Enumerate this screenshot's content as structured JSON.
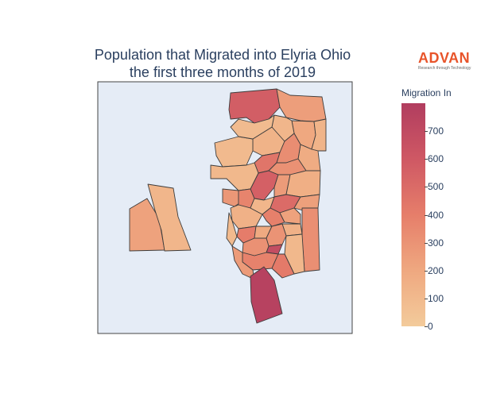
{
  "title": {
    "line1": "Population that Migrated into Elyria Ohio",
    "line2": "the first three months of 2019"
  },
  "logo": {
    "name": "ADVAN",
    "tagline": "Research through Technology"
  },
  "colorbar": {
    "title": "Migration In",
    "min": 0,
    "max": 800,
    "ticks": [
      "0",
      "100",
      "200",
      "300",
      "400",
      "500",
      "600",
      "700"
    ],
    "scale": [
      "#f3cb9b",
      "#efa880",
      "#e67e6a",
      "#cf5864",
      "#b13d5f"
    ]
  },
  "colors": {
    "plot_background": "#e5ecf6",
    "region_border": "#3d3d3d"
  },
  "chart_data": {
    "type": "choropleth",
    "value_label": "Migration In",
    "value_range": [
      0,
      800
    ],
    "regions": [
      {
        "id": "r01",
        "value": 570
      },
      {
        "id": "r02",
        "value": 250
      },
      {
        "id": "r03",
        "value": 200
      },
      {
        "id": "r04",
        "value": 130
      },
      {
        "id": "r05",
        "value": 120
      },
      {
        "id": "r06",
        "value": 140
      },
      {
        "id": "r07",
        "value": 100
      },
      {
        "id": "r08",
        "value": 90
      },
      {
        "id": "r09",
        "value": 180
      },
      {
        "id": "r10",
        "value": 330
      },
      {
        "id": "r11",
        "value": 450
      },
      {
        "id": "r12",
        "value": 560
      },
      {
        "id": "r13",
        "value": 310
      },
      {
        "id": "r14",
        "value": 260
      },
      {
        "id": "r15",
        "value": 160
      },
      {
        "id": "r16",
        "value": 110
      },
      {
        "id": "r17",
        "value": 280
      },
      {
        "id": "r18",
        "value": 370
      },
      {
        "id": "r19",
        "value": 500
      },
      {
        "id": "r20",
        "value": 240
      },
      {
        "id": "r21",
        "value": 150
      },
      {
        "id": "r22",
        "value": 120
      },
      {
        "id": "r23",
        "value": 390
      },
      {
        "id": "r24",
        "value": 230
      },
      {
        "id": "r25",
        "value": 320
      },
      {
        "id": "r26",
        "value": 150
      },
      {
        "id": "r27",
        "value": 410
      },
      {
        "id": "r28",
        "value": 190
      },
      {
        "id": "r29",
        "value": 300
      },
      {
        "id": "r30",
        "value": 680
      },
      {
        "id": "r31",
        "value": 110
      },
      {
        "id": "r32",
        "value": 100
      },
      {
        "id": "r33",
        "value": 310
      },
      {
        "id": "r34",
        "value": 380
      },
      {
        "id": "r35",
        "value": 420
      },
      {
        "id": "r36",
        "value": 260
      },
      {
        "id": "r37",
        "value": 230
      },
      {
        "id": "r38",
        "value": 120
      },
      {
        "id": "r39",
        "value": 760
      }
    ]
  }
}
